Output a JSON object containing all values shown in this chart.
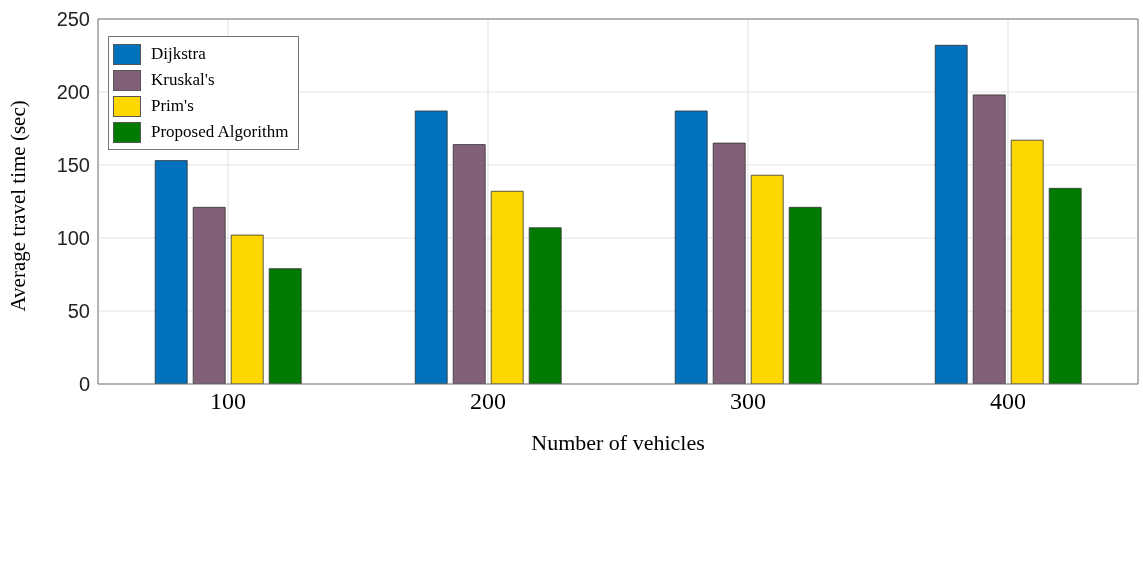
{
  "chart_data": {
    "type": "bar",
    "xlabel": "Number of vehicles",
    "ylabel": "Average travel time (sec)",
    "categories": [
      "100",
      "200",
      "300",
      "400"
    ],
    "series": [
      {
        "name": "Dijkstra",
        "color": "#0072bd",
        "values": [
          153,
          187,
          187,
          232
        ]
      },
      {
        "name": "Kruskal's",
        "color": "#82607a",
        "values": [
          121,
          164,
          165,
          198
        ]
      },
      {
        "name": "Prim's",
        "color": "#ffd700",
        "values": [
          102,
          132,
          143,
          167
        ]
      },
      {
        "name": "Proposed Algorithm",
        "color": "#007a00",
        "values": [
          79,
          107,
          121,
          134
        ]
      }
    ],
    "ylim": [
      0,
      250
    ],
    "yticks": [
      0,
      50,
      100,
      150,
      200,
      250
    ],
    "grid": true,
    "legend": "top left"
  }
}
